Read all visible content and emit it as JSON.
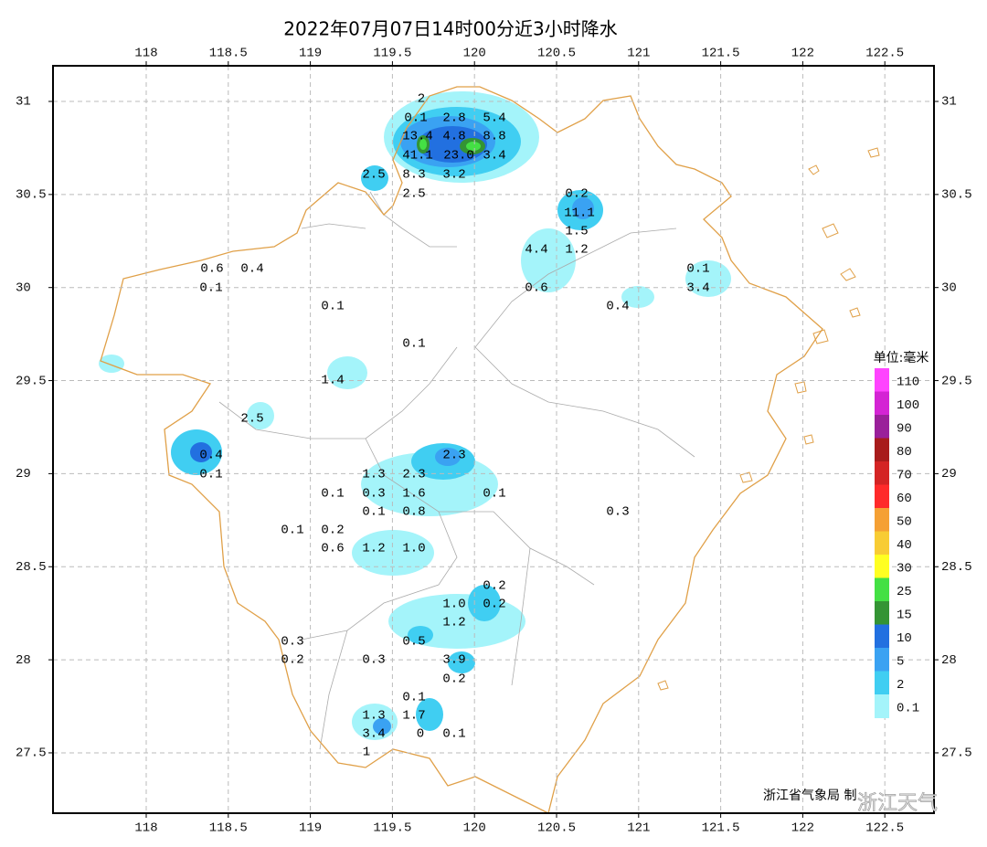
{
  "title": "2022年07月07日14时00分近3小时降水",
  "map": {
    "lon_ticks": [
      118,
      118.5,
      119,
      119.5,
      120,
      120.5,
      121,
      121.5,
      122,
      122.5
    ],
    "lat_ticks": [
      31,
      30.5,
      30,
      29.5,
      29,
      28.5,
      28,
      27.5
    ]
  },
  "stations": [
    "2",
    "0.1",
    "2.8",
    "5.4",
    "13.4",
    "4.8",
    "8.8",
    "41.1",
    "23.0",
    "3.4",
    "2.5",
    "8.3",
    "3.2",
    "2.5",
    "0.2",
    "11.1",
    "1.5",
    "4.4",
    "1.2",
    "0.6",
    "0.1",
    "3.4",
    "0.4",
    "0.6",
    "0.4",
    "0.1",
    "0.1",
    "0.1",
    "1.4",
    "2.5",
    "0.4",
    "0.1",
    "2.3",
    "1.3",
    "2.3",
    "0.1",
    "0.3",
    "1.6",
    "0.1",
    "0.1",
    "0.8",
    "0.3",
    "0.1",
    "0.2",
    "0.6",
    "1.2",
    "1.0",
    "0.2",
    "1.0",
    "0.2",
    "1.2",
    "0.3",
    "0.5",
    "0.2",
    "0.3",
    "3.9",
    "0.2",
    "0.1",
    "1.3",
    "1.7",
    "3.4",
    "0",
    "0.1",
    "1"
  ],
  "legend": {
    "unit": "单位:毫米",
    "levels": [
      {
        "label": 110,
        "color": "#ff44ff"
      },
      {
        "label": 100,
        "color": "#d424d4"
      },
      {
        "label": 90,
        "color": "#9a209a"
      },
      {
        "label": 80,
        "color": "#a81c1c"
      },
      {
        "label": 70,
        "color": "#d42424"
      },
      {
        "label": 60,
        "color": "#ff2a2a"
      },
      {
        "label": 50,
        "color": "#f5a034"
      },
      {
        "label": 40,
        "color": "#f8cc34"
      },
      {
        "label": 30,
        "color": "#ffff22"
      },
      {
        "label": 25,
        "color": "#44e044"
      },
      {
        "label": 15,
        "color": "#349434"
      },
      {
        "label": 10,
        "color": "#2270e0"
      },
      {
        "label": 5,
        "color": "#3aa2f2"
      },
      {
        "label": 2,
        "color": "#40cef2"
      },
      {
        "label": 0.1,
        "color": "#a4f4fa"
      }
    ]
  },
  "footer": {
    "credit": "浙江省气象局 制",
    "watermark": "浙江天气"
  }
}
